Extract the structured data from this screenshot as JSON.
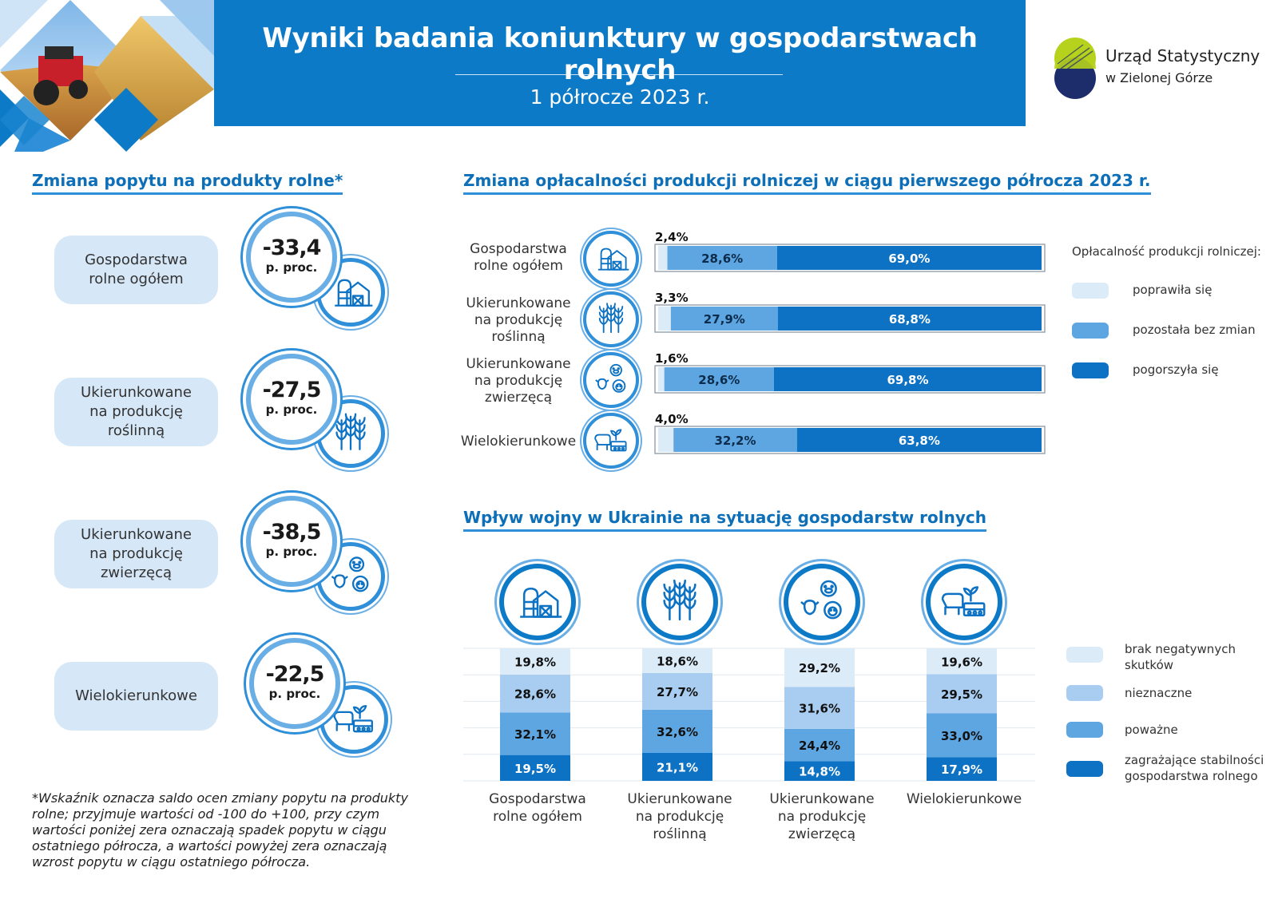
{
  "header": {
    "title": "Wyniki badania koniunktury w gospodarstwach rolnych",
    "subtitle": "1 półrocze 2023 r."
  },
  "logo": {
    "name": "Urząd Statystyczny",
    "city": "w Zielonej Górze"
  },
  "colors": {
    "brand_blue": "#0d7ac8",
    "light": "#d6e7f7",
    "mid": "#6aaee6",
    "dark": "#0d6fb8",
    "lightest": "#dcebf8",
    "second": "#a9cdf0"
  },
  "demand": {
    "title": "Zmiana popytu na produkty rolne*",
    "unit": "p. proc.",
    "items": [
      {
        "label": "Gospodarstwa\nrolne ogółem",
        "value": "-33,4",
        "icon": "barn-icon"
      },
      {
        "label": "Ukierunkowane\nna produkcję\nroślinną",
        "value": "-27,5",
        "icon": "wheat-icon"
      },
      {
        "label": "Ukierunkowane\nna produkcję\nzwierzęcą",
        "value": "-38,5",
        "icon": "livestock-icon"
      },
      {
        "label": "Wielokierunkowe",
        "value": "-22,5",
        "icon": "mixed-farm-icon"
      }
    ],
    "footnote": "*Wskaźnik oznacza saldo ocen zmiany popytu na produkty rolne; przyjmuje wartości od -100 do +100, przy czym wartości poniżej zera oznaczają spadek popytu w ciągu ostatniego półrocza, a wartości powyżej zera oznaczają wzrost popytu w ciągu ostatniego półrocza."
  },
  "profitability": {
    "title": "Zmiana opłacalności produkcji rolniczej w ciągu pierwszego półrocza 2023 r.",
    "legend_title": "Opłacalność produkcji rolniczej:",
    "labels": [
      "Gospodarstwa\nrolne ogółem",
      "Ukierunkowane\nna produkcję\nroślinną",
      "Ukierunkowane\nna produkcję\nzwierzęcą",
      "Wielokierunkowe"
    ]
  },
  "war": {
    "title": "Wpływ wojny w Ukrainie na sytuację gospodarstw rolnych",
    "labels": [
      "Gospodarstwa\nrolne ogółem",
      "Ukierunkowane\nna produkcję\nroślinną",
      "Ukierunkowane\nna produkcję\nzwierzęcą",
      "Wielokierunkowe"
    ]
  },
  "chart_data": [
    {
      "type": "bar",
      "orientation": "horizontal",
      "stacked": true,
      "percent": true,
      "title": "Zmiana opłacalności produkcji rolniczej w ciągu pierwszego półrocza 2023 r.",
      "categories": [
        "Gospodarstwa rolne ogółem",
        "Ukierunkowane na produkcję roślinną",
        "Ukierunkowane na produkcję zwierzęcą",
        "Wielokierunkowe"
      ],
      "series": [
        {
          "name": "poprawiła się",
          "values": [
            2.4,
            3.3,
            1.6,
            4.0
          ],
          "labels": [
            "2,4%",
            "3,3%",
            "1,6%",
            "4,0%"
          ],
          "color": "#dcebf8"
        },
        {
          "name": "pozostała bez zmian",
          "values": [
            28.6,
            27.9,
            28.6,
            32.2
          ],
          "labels": [
            "28,6%",
            "27,9%",
            "28,6%",
            "32,2%"
          ],
          "color": "#5ea6e2"
        },
        {
          "name": "pogorszyła się",
          "values": [
            69.0,
            68.8,
            69.8,
            63.8
          ],
          "labels": [
            "69,0%",
            "68,8%",
            "69,8%",
            "63,8%"
          ],
          "color": "#0d72c4"
        }
      ],
      "xlim": [
        0,
        100
      ],
      "legend_position": "right"
    },
    {
      "type": "bar",
      "orientation": "vertical",
      "stacked": true,
      "percent": true,
      "title": "Wpływ wojny w Ukrainie na sytuację gospodarstw rolnych",
      "categories": [
        "Gospodarstwa rolne ogółem",
        "Ukierunkowane na produkcję roślinną",
        "Ukierunkowane na produkcję zwierzęcą",
        "Wielokierunkowe"
      ],
      "series": [
        {
          "name": "zagrażające stabilności\ngospodarstwa rolnego",
          "values": [
            19.5,
            21.1,
            14.8,
            17.9
          ],
          "labels": [
            "19,5%",
            "21,1%",
            "14,8%",
            "17,9%"
          ],
          "color": "#0d72c4"
        },
        {
          "name": "poważne",
          "values": [
            32.1,
            32.6,
            24.4,
            33.0
          ],
          "labels": [
            "32,1%",
            "32,6%",
            "24,4%",
            "33,0%"
          ],
          "color": "#5ea6e2"
        },
        {
          "name": "nieznaczne",
          "values": [
            28.6,
            27.7,
            31.6,
            29.5
          ],
          "labels": [
            "28,6%",
            "27,7%",
            "31,6%",
            "29,5%"
          ],
          "color": "#a9cdf0"
        },
        {
          "name": "brak negatywnych\nskutków",
          "values": [
            19.8,
            18.6,
            29.2,
            19.6
          ],
          "labels": [
            "19,8%",
            "18,6%",
            "29,2%",
            "19,6%"
          ],
          "color": "#dcebf8"
        }
      ],
      "ylim": [
        0,
        100
      ],
      "legend_position": "right"
    }
  ]
}
